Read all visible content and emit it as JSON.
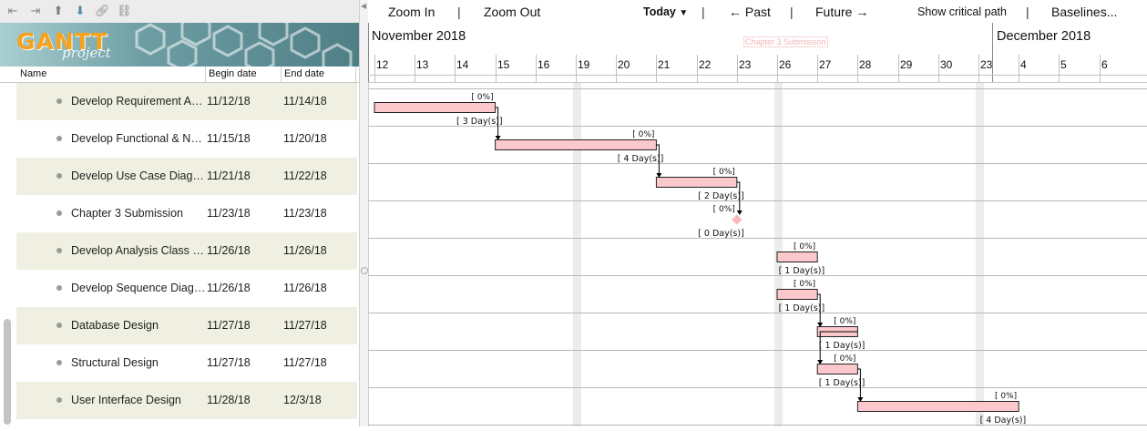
{
  "toolbar": {
    "icons": [
      "unindent-icon",
      "indent-icon",
      "move-up-icon",
      "move-down-icon",
      "link-icon",
      "unlink-icon"
    ]
  },
  "logo": {
    "main": "GANTT",
    "sub": "project"
  },
  "table": {
    "headers": {
      "name": "Name",
      "begin": "Begin date",
      "end": "End date"
    },
    "rows": [
      {
        "name": "Develop Requirement Analysis",
        "begin": "11/12/18",
        "end": "11/14/18"
      },
      {
        "name": "Develop Functional & Non-functional",
        "begin": "11/15/18",
        "end": "11/20/18"
      },
      {
        "name": "Develop Use Case Diagram",
        "begin": "11/21/18",
        "end": "11/22/18"
      },
      {
        "name": "Chapter 3 Submission",
        "begin": "11/23/18",
        "end": "11/23/18"
      },
      {
        "name": "Develop Analysis Class Diagram",
        "begin": "11/26/18",
        "end": "11/26/18"
      },
      {
        "name": "Develop Sequence Diagram",
        "begin": "11/26/18",
        "end": "11/26/18"
      },
      {
        "name": "Database Design",
        "begin": "11/27/18",
        "end": "11/27/18"
      },
      {
        "name": "Structural Design",
        "begin": "11/27/18",
        "end": "11/27/18"
      },
      {
        "name": "User Interface Design",
        "begin": "11/28/18",
        "end": "12/3/18"
      }
    ]
  },
  "chart_toolbar": {
    "zoom_in": "Zoom In",
    "zoom_out": "Zoom Out",
    "today": "Today",
    "past": "← Past",
    "future": "Future →",
    "critical_path": "Show critical path",
    "baselines": "Baselines...",
    "separator": "|"
  },
  "timeline": {
    "months": [
      {
        "label": "November 2018"
      },
      {
        "label": "December 2018"
      }
    ],
    "milestone_label": "Chapter 3 Submission",
    "day_labels": [
      "12",
      "13",
      "14",
      "15",
      "16",
      "19",
      "20",
      "21",
      "22",
      "23",
      "26",
      "27",
      "28",
      "29",
      "30",
      "23",
      "4",
      "5",
      "6"
    ]
  },
  "tasks": [
    {
      "start": 0,
      "days": 3,
      "progress": "[ 0%]",
      "duration": "[ 3 Day(s)]"
    },
    {
      "start": 3,
      "days": 4,
      "progress": "[ 0%]",
      "duration": "[ 4 Day(s)]"
    },
    {
      "start": 7,
      "days": 2,
      "progress": "[ 0%]",
      "duration": "[ 2 Day(s)]"
    },
    {
      "start": 9,
      "days": 0,
      "progress": "[ 0%]",
      "duration": "[ 0 Day(s)]",
      "milestone": true
    },
    {
      "start": 10,
      "days": 1,
      "progress": "[ 0%]",
      "duration": "[ 1 Day(s)]"
    },
    {
      "start": 10,
      "days": 1,
      "progress": "[ 0%]",
      "duration": "[ 1 Day(s)]"
    },
    {
      "start": 11,
      "days": 1,
      "progress": "[ 0%]",
      "duration": "[ 1 Day(s)]"
    },
    {
      "start": 11,
      "days": 1,
      "progress": "[ 0%]",
      "duration": "[ 1 Day(s)]"
    },
    {
      "start": 12,
      "days": 4,
      "progress": "[ 0%]",
      "duration": "[ 4 Day(s)]"
    }
  ],
  "dependencies": [
    [
      0,
      1
    ],
    [
      1,
      2
    ],
    [
      2,
      3
    ],
    [
      5,
      6
    ],
    [
      6,
      7
    ],
    [
      7,
      8
    ]
  ],
  "colors": {
    "bar_fill": "#fbc8cc",
    "bar_stroke": "#222222",
    "weekend": "#ececec",
    "milestone": "#f7b9bd"
  }
}
